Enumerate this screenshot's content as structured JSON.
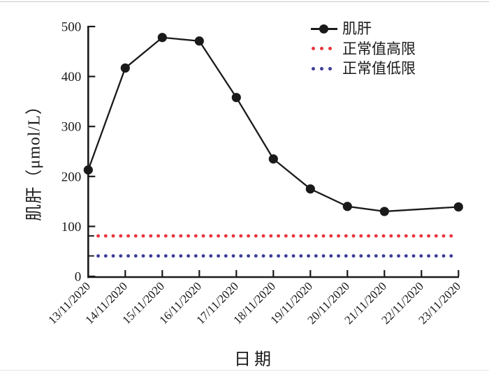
{
  "accent_colors": {
    "series": "#1a1a1a",
    "upper_limit": "#e8363c",
    "lower_limit": "#3d3d99"
  },
  "chart_data": {
    "type": "line",
    "title": "",
    "xlabel": "日期",
    "ylabel": "肌肝（μmol/L）",
    "x": [
      "13/11/2020",
      "14/11/2020",
      "15/11/2020",
      "16/11/2020",
      "17/11/2020",
      "18/11/2020",
      "19/11/2020",
      "20/11/2020",
      "21/11/2020",
      "22/11/2020",
      "23/11/2020"
    ],
    "series": [
      {
        "name": "肌肝",
        "kind": "data",
        "color": "#1a1a1a",
        "marker": "filled-circle",
        "values": [
          213,
          417,
          478,
          471,
          358,
          235,
          175,
          140,
          130,
          null,
          139
        ]
      },
      {
        "name": "正常值高限",
        "kind": "reference-line",
        "style": "dotted",
        "color": "#e8363c",
        "value": 81
      },
      {
        "name": "正常值低限",
        "kind": "reference-line",
        "style": "dotted",
        "color": "#3d3d99",
        "value": 41
      }
    ],
    "ylim": [
      0,
      500
    ],
    "yticks": [
      0,
      100,
      200,
      300,
      400,
      500
    ],
    "extra_yticks": [
      41,
      81
    ],
    "grid": false,
    "legend_position": "top-right"
  },
  "legend": {
    "items": [
      {
        "label": "肌肝",
        "symbol": "line-with-dot",
        "color": "#1a1a1a"
      },
      {
        "label": "正常值高限",
        "symbol": "dotted-line",
        "color": "#e8363c"
      },
      {
        "label": "正常值低限",
        "symbol": "dotted-line",
        "color": "#3d3d99"
      }
    ]
  }
}
